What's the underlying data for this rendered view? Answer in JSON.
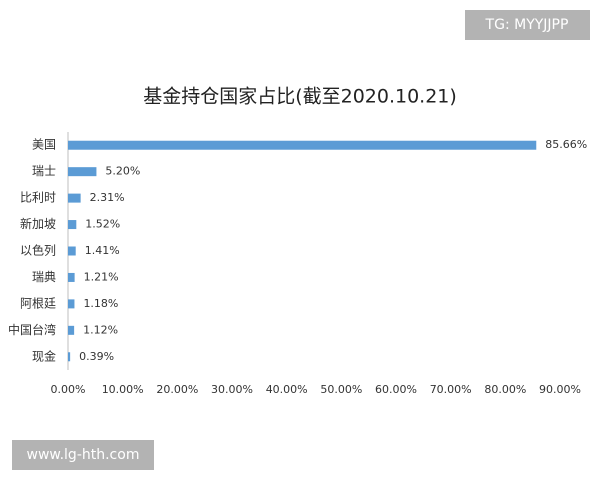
{
  "chart_data": {
    "type": "bar",
    "orientation": "horizontal",
    "title": "基金持仓国家占比(截至2020.10.21)",
    "categories": [
      "美国",
      "瑞士",
      "比利时",
      "新加坡",
      "以色列",
      "瑞典",
      "阿根廷",
      "中国台湾",
      "现金"
    ],
    "values": [
      85.66,
      5.2,
      2.31,
      1.52,
      1.41,
      1.21,
      1.18,
      1.12,
      0.39
    ],
    "value_labels": [
      "85.66%",
      "5.20%",
      "2.31%",
      "1.52%",
      "1.41%",
      "1.21%",
      "1.18%",
      "1.12%",
      "0.39%"
    ],
    "color": "#5b9bd5",
    "xlim": [
      0,
      90
    ],
    "xticks": [
      {
        "value": 0,
        "label": "0.00%"
      },
      {
        "value": 10,
        "label": "10.00%"
      },
      {
        "value": 20,
        "label": "20.00%"
      },
      {
        "value": 30,
        "label": "30.00%"
      },
      {
        "value": 40,
        "label": "40.00%"
      },
      {
        "value": 50,
        "label": "50.00%"
      },
      {
        "value": 60,
        "label": "60.00%"
      },
      {
        "value": 70,
        "label": "70.00%"
      },
      {
        "value": 80,
        "label": "80.00%"
      },
      {
        "value": 90,
        "label": "90.00%"
      }
    ],
    "grid": false
  },
  "watermarks": [
    "TG: MYYJJPP",
    "www.lg-hth.com"
  ]
}
